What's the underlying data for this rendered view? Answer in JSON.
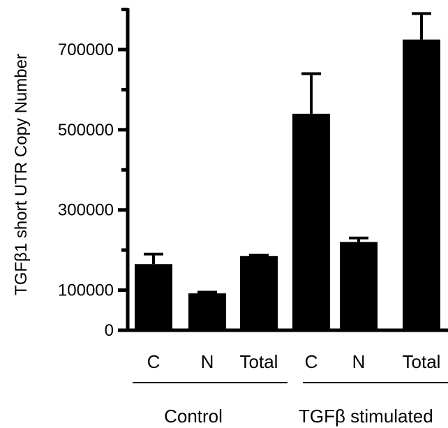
{
  "chart_data": {
    "type": "bar",
    "ylabel": "TGFβ1 short UTR Copy Number",
    "ylim": [
      0,
      800000
    ],
    "yticks": [
      {
        "value": 0,
        "label": "0"
      },
      {
        "value": 100000,
        "label": "100000"
      },
      {
        "value": 300000,
        "label": "300000"
      },
      {
        "value": 500000,
        "label": "500000"
      },
      {
        "value": 700000,
        "label": "700000"
      }
    ],
    "yminor": [
      200000,
      400000,
      600000,
      800000
    ],
    "categories": [
      "C",
      "N",
      "Total",
      "C",
      "N",
      "Total"
    ],
    "values": [
      165000,
      92000,
      185000,
      540000,
      220000,
      725000
    ],
    "errors": [
      25000,
      3000,
      2000,
      100000,
      10000,
      65000
    ],
    "groups": [
      {
        "label": "Control",
        "start": 0,
        "end": 2
      },
      {
        "label": "TGFβ stimulated",
        "start": 3,
        "end": 5
      }
    ],
    "grid": false,
    "legend": "none"
  }
}
